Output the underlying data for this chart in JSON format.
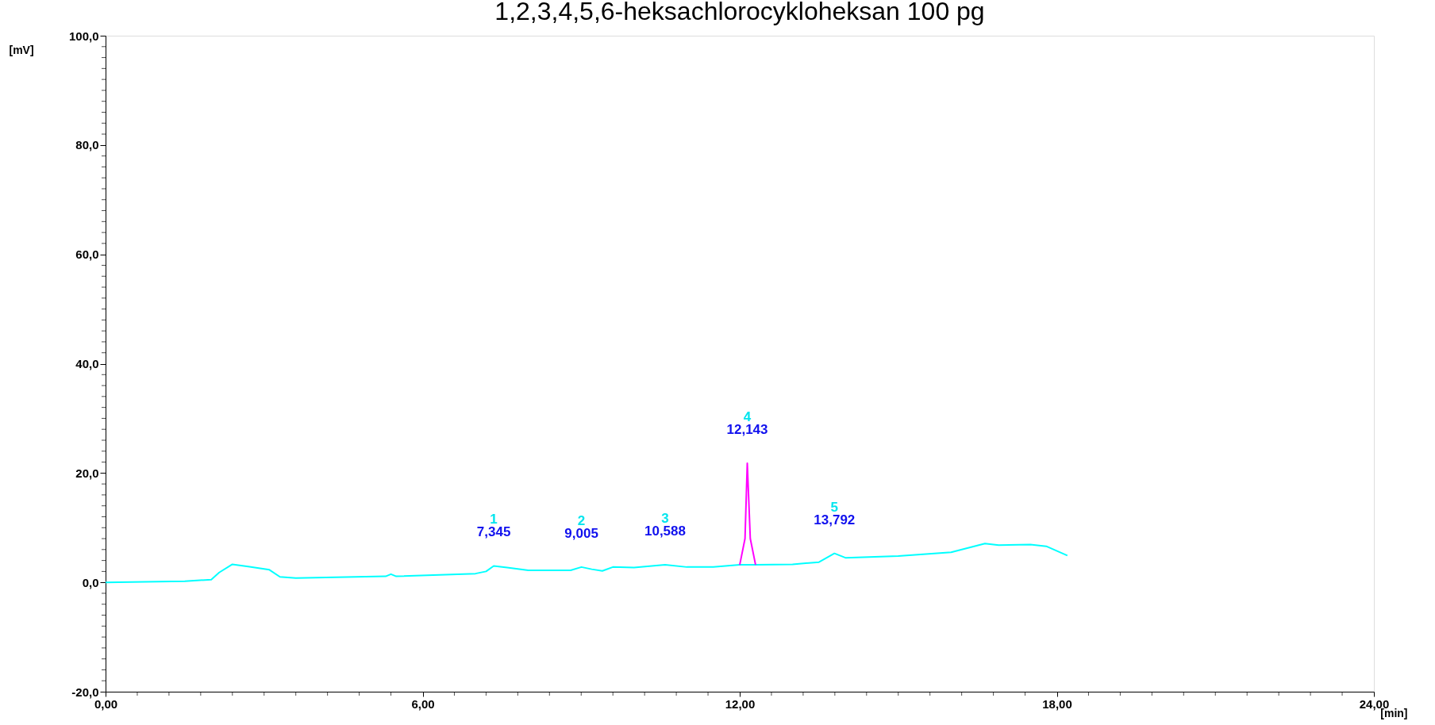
{
  "chart_data": {
    "type": "line",
    "title": "1,2,3,4,5,6-heksachlorocykloheksan 100 pg",
    "xlabel": "[min]",
    "ylabel": "[mV]",
    "xlim": [
      0,
      24
    ],
    "ylim": [
      -20,
      100
    ],
    "xticks": [
      {
        "value": 0,
        "label": "0,00"
      },
      {
        "value": 0.6,
        "label": null
      },
      {
        "value": 1.2,
        "label": null
      },
      {
        "value": 1.8,
        "label": null
      },
      {
        "value": 2.4,
        "label": null
      },
      {
        "value": 3,
        "label": null
      },
      {
        "value": 3.6,
        "label": null
      },
      {
        "value": 4.2,
        "label": null
      },
      {
        "value": 4.8,
        "label": null
      },
      {
        "value": 5.4,
        "label": null
      },
      {
        "value": 6,
        "label": "6,00"
      },
      {
        "value": 6.6,
        "label": null
      },
      {
        "value": 7.2,
        "label": null
      },
      {
        "value": 7.8,
        "label": null
      },
      {
        "value": 8.4,
        "label": null
      },
      {
        "value": 9,
        "label": null
      },
      {
        "value": 9.6,
        "label": null
      },
      {
        "value": 10.2,
        "label": null
      },
      {
        "value": 10.8,
        "label": null
      },
      {
        "value": 11.4,
        "label": null
      },
      {
        "value": 12,
        "label": "12,00"
      },
      {
        "value": 12.6,
        "label": null
      },
      {
        "value": 13.2,
        "label": null
      },
      {
        "value": 13.8,
        "label": null
      },
      {
        "value": 14.4,
        "label": null
      },
      {
        "value": 15,
        "label": null
      },
      {
        "value": 15.6,
        "label": null
      },
      {
        "value": 16.2,
        "label": null
      },
      {
        "value": 16.8,
        "label": null
      },
      {
        "value": 17.4,
        "label": null
      },
      {
        "value": 18,
        "label": "18,00"
      },
      {
        "value": 18.6,
        "label": null
      },
      {
        "value": 19.2,
        "label": null
      },
      {
        "value": 19.8,
        "label": null
      },
      {
        "value": 20.4,
        "label": null
      },
      {
        "value": 21,
        "label": null
      },
      {
        "value": 21.6,
        "label": null
      },
      {
        "value": 22.2,
        "label": null
      },
      {
        "value": 22.8,
        "label": null
      },
      {
        "value": 23.4,
        "label": null
      },
      {
        "value": 24,
        "label": "24,00"
      }
    ],
    "yticks": [
      {
        "value": -20,
        "label": "-20,0"
      },
      {
        "value": -18,
        "label": null
      },
      {
        "value": -16,
        "label": null
      },
      {
        "value": -14,
        "label": null
      },
      {
        "value": -12,
        "label": null
      },
      {
        "value": -10,
        "label": null
      },
      {
        "value": -8,
        "label": null
      },
      {
        "value": -6,
        "label": null
      },
      {
        "value": -4,
        "label": null
      },
      {
        "value": -2,
        "label": null
      },
      {
        "value": 0,
        "label": "0,0"
      },
      {
        "value": 2,
        "label": null
      },
      {
        "value": 4,
        "label": null
      },
      {
        "value": 6,
        "label": null
      },
      {
        "value": 8,
        "label": null
      },
      {
        "value": 10,
        "label": null
      },
      {
        "value": 12,
        "label": null
      },
      {
        "value": 14,
        "label": null
      },
      {
        "value": 16,
        "label": null
      },
      {
        "value": 18,
        "label": null
      },
      {
        "value": 20,
        "label": "20,0"
      },
      {
        "value": 22,
        "label": null
      },
      {
        "value": 24,
        "label": null
      },
      {
        "value": 26,
        "label": null
      },
      {
        "value": 28,
        "label": null
      },
      {
        "value": 30,
        "label": null
      },
      {
        "value": 32,
        "label": null
      },
      {
        "value": 34,
        "label": null
      },
      {
        "value": 36,
        "label": null
      },
      {
        "value": 38,
        "label": null
      },
      {
        "value": 40,
        "label": "40,0"
      },
      {
        "value": 42,
        "label": null
      },
      {
        "value": 44,
        "label": null
      },
      {
        "value": 46,
        "label": null
      },
      {
        "value": 48,
        "label": null
      },
      {
        "value": 50,
        "label": null
      },
      {
        "value": 52,
        "label": null
      },
      {
        "value": 54,
        "label": null
      },
      {
        "value": 56,
        "label": null
      },
      {
        "value": 58,
        "label": null
      },
      {
        "value": 60,
        "label": "60,0"
      },
      {
        "value": 62,
        "label": null
      },
      {
        "value": 64,
        "label": null
      },
      {
        "value": 66,
        "label": null
      },
      {
        "value": 68,
        "label": null
      },
      {
        "value": 70,
        "label": null
      },
      {
        "value": 72,
        "label": null
      },
      {
        "value": 74,
        "label": null
      },
      {
        "value": 76,
        "label": null
      },
      {
        "value": 78,
        "label": null
      },
      {
        "value": 80,
        "label": "80,0"
      },
      {
        "value": 82,
        "label": null
      },
      {
        "value": 84,
        "label": null
      },
      {
        "value": 86,
        "label": null
      },
      {
        "value": 88,
        "label": null
      },
      {
        "value": 90,
        "label": null
      },
      {
        "value": 92,
        "label": null
      },
      {
        "value": 94,
        "label": null
      },
      {
        "value": 96,
        "label": null
      },
      {
        "value": 98,
        "label": null
      },
      {
        "value": 100,
        "label": "100,0"
      }
    ],
    "grid": false,
    "marker": "none",
    "line_style": "solid",
    "series": [
      {
        "color": "#00ffff",
        "x": [
          0,
          1.5,
          2.0,
          2.15,
          2.4,
          2.7,
          3.1,
          3.3,
          3.6,
          5.3,
          5.4,
          5.5,
          7.0,
          7.2,
          7.345,
          7.6,
          8.0,
          8.8,
          9.005,
          9.2,
          9.4,
          9.6,
          10.0,
          10.588,
          11.0,
          11.5,
          12.0,
          12.3,
          13.0,
          13.5,
          13.792,
          14.0,
          15.0,
          16.0,
          16.64,
          16.9,
          17.5,
          17.8,
          18.2
        ],
        "values": [
          0,
          0.2,
          0.5,
          1.8,
          3.3,
          2.9,
          2.3,
          1.0,
          0.8,
          1.1,
          1.5,
          1.1,
          1.6,
          2.0,
          3.0,
          2.7,
          2.2,
          2.2,
          2.8,
          2.4,
          2.1,
          2.8,
          2.7,
          3.2,
          2.8,
          2.8,
          3.2,
          3.2,
          3.3,
          3.7,
          5.3,
          4.5,
          4.8,
          5.5,
          7.1,
          6.8,
          6.9,
          6.6,
          4.9
        ]
      },
      {
        "color": "#ff00ff",
        "x": [
          12.0,
          12.1,
          12.143,
          12.2,
          12.3
        ],
        "values": [
          3.2,
          8,
          21.8,
          8,
          3.2
        ]
      }
    ],
    "annotations": [
      {
        "text": "1",
        "x": 7.345,
        "y": 3.0
      },
      {
        "text": "7,345",
        "x": 7.345,
        "y": 3.0
      },
      {
        "text": "2",
        "x": 9.005,
        "y": 2.8
      },
      {
        "text": "9,005",
        "x": 9.005,
        "y": 2.8
      },
      {
        "text": "3",
        "x": 10.588,
        "y": 3.2
      },
      {
        "text": "10,588",
        "x": 10.588,
        "y": 3.2
      },
      {
        "text": "4",
        "x": 12.143,
        "y": 21.8
      },
      {
        "text": "12,143",
        "x": 12.143,
        "y": 21.8
      },
      {
        "text": "5",
        "x": 13.792,
        "y": 5.3
      },
      {
        "text": "13,792",
        "x": 13.792,
        "y": 5.3
      }
    ]
  }
}
